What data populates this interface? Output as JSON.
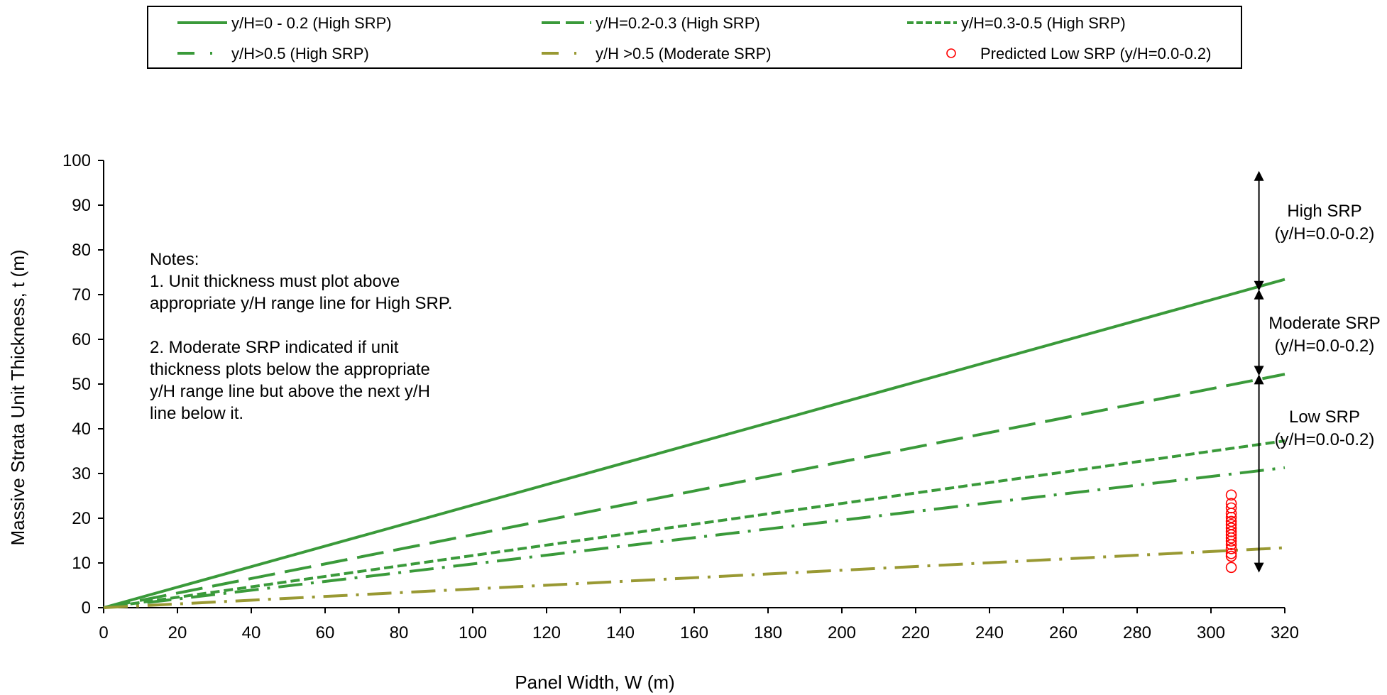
{
  "chart_data": {
    "type": "line",
    "xlabel": "Panel Width, W (m)",
    "ylabel": "Massive Strata Unit Thickness, t (m)",
    "xlim": [
      0,
      320
    ],
    "ylim": [
      0,
      100
    ],
    "x_ticks": [
      "0",
      "20",
      "40",
      "60",
      "80",
      "100",
      "120",
      "140",
      "160",
      "180",
      "200",
      "220",
      "240",
      "260",
      "280",
      "300",
      "320"
    ],
    "y_ticks": [
      "0",
      "10",
      "20",
      "30",
      "40",
      "50",
      "60",
      "70",
      "80",
      "90",
      "100"
    ],
    "grid": false,
    "legend_position": "top",
    "series": [
      {
        "name": "y/H=0 - 0.2 (High SRP)",
        "style": "solid",
        "color": "#3a9a3a",
        "x": [
          0,
          320
        ],
        "y": [
          0,
          73.4
        ]
      },
      {
        "name": "y/H=0.2-0.3 (High SRP)",
        "style": "long-dash",
        "color": "#3a9a3a",
        "x": [
          0,
          320
        ],
        "y": [
          0,
          52.2
        ]
      },
      {
        "name": "y/H=0.3-0.5 (High SRP)",
        "style": "short-dash",
        "color": "#3a9a3a",
        "x": [
          0,
          320
        ],
        "y": [
          0,
          37.3
        ]
      },
      {
        "name": "y/H>0.5 (High SRP)",
        "style": "dash-dot",
        "color": "#3a9a3a",
        "x": [
          0,
          320
        ],
        "y": [
          0,
          31.3
        ]
      },
      {
        "name": "y/H >0.5 (Moderate SRP)",
        "style": "dash-dot",
        "color": "#999933",
        "x": [
          0,
          320
        ],
        "y": [
          0,
          13.4
        ]
      },
      {
        "name": "Predicted Low SRP (y/H=0.0-0.2)",
        "style": "markers",
        "color": "#ff0000",
        "x": [
          305.5,
          305.5,
          305.5,
          305.5,
          305.5,
          305.5,
          305.5,
          305.5,
          305.5,
          305.5,
          305.5,
          305.5,
          305.5,
          305.5,
          305.5,
          305.5,
          305.5
        ],
        "y": [
          25.2,
          23.3,
          22.3,
          21.1,
          20.2,
          19.3,
          18.6,
          17.8,
          17.0,
          16.3,
          15.6,
          14.9,
          14.1,
          13.2,
          12.1,
          11.5,
          9.0
        ]
      }
    ],
    "notes": [
      "Notes:",
      "1. Unit thickness must plot above",
      "appropriate y/H range line for High SRP.",
      "",
      "2. Moderate SRP indicated if unit",
      "thickness plots below the appropriate",
      "y/H range line but above the next y/H",
      "line below it."
    ],
    "annotations": {
      "arrow_x": 313,
      "zones": [
        {
          "label": "High SRP",
          "sub": "(y/H=0.0-0.2)",
          "y_from": 71,
          "y_to": 97.5
        },
        {
          "label": "Moderate SRP",
          "sub": "(y/H=0.0-0.2)",
          "y_from": 52,
          "y_to": 71
        },
        {
          "label": "Low SRP",
          "sub": "(y/H=0.0-0.2)",
          "y_from": 8,
          "y_to": 52
        }
      ]
    }
  }
}
